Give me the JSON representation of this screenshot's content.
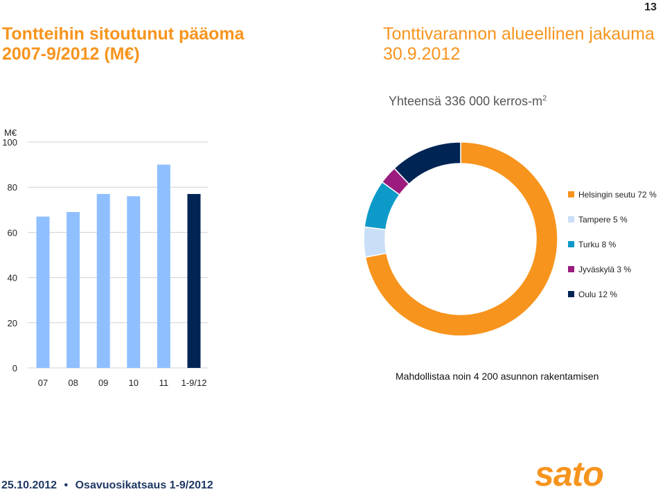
{
  "page_number": "13",
  "left_title": "Tontteihin sitoutunut pääoma 2007-9/2012 (M€)",
  "right_title": "Tonttivarannon alueellinen jakauma 30.9.2012",
  "donut_subtitle": "Yhteensä 336 000 kerros-m",
  "donut_subtitle_sup": "2",
  "note": "Mahdollistaa noin 4 200 asunnon rakentamisen",
  "footer": {
    "date": "25.10.2012",
    "bullet": "•",
    "label": "Osavuosikatsaus 1-9/2012"
  },
  "logo": {
    "text": "sato",
    "color": "#F7941D"
  },
  "colors": {
    "orange": "#F7941D",
    "light_blue_bar": "#8FBFFF",
    "dark_navy": "#002554",
    "tampere": "#C9DFF7",
    "turku": "#0E9AC9",
    "jyvaskyla": "#9B1C7E"
  },
  "chart_data": [
    {
      "type": "bar",
      "unit_label": "M€",
      "categories": [
        "07",
        "08",
        "09",
        "10",
        "11",
        "1-9/12"
      ],
      "values": [
        67,
        69,
        77,
        76,
        90,
        77
      ],
      "bar_colors": [
        "#8FBFFF",
        "#8FBFFF",
        "#8FBFFF",
        "#8FBFFF",
        "#8FBFFF",
        "#002554"
      ],
      "yticks": [
        0,
        20,
        40,
        60,
        80,
        100
      ],
      "ylim": [
        0,
        100
      ],
      "grid": true
    },
    {
      "type": "pie",
      "donut": true,
      "legend_position": "right",
      "slices": [
        {
          "label": "Helsingin seutu 72 %",
          "value": 72,
          "color": "#F7941D"
        },
        {
          "label": "Tampere 5 %",
          "value": 5,
          "color": "#C9DFF7"
        },
        {
          "label": "Turku 8 %",
          "value": 8,
          "color": "#0E9AC9"
        },
        {
          "label": "Jyväskylä 3 %",
          "value": 3,
          "color": "#9B1C7E"
        },
        {
          "label": "Oulu 12 %",
          "value": 12,
          "color": "#002554"
        }
      ]
    }
  ]
}
